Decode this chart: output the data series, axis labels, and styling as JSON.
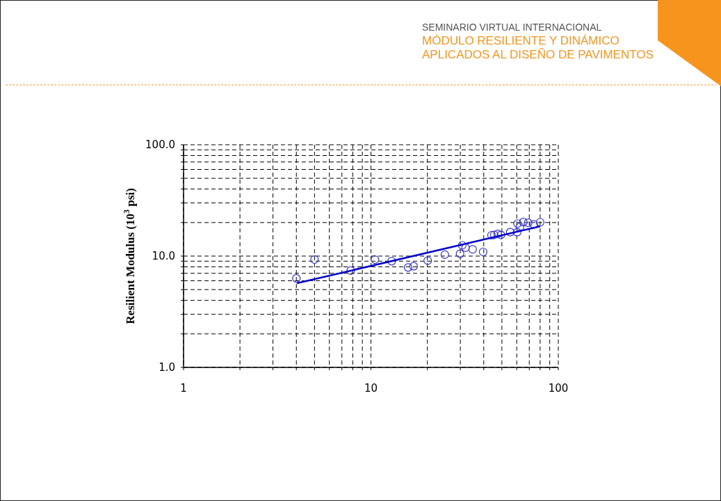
{
  "chart_data": {
    "type": "scatter",
    "title": "SEMINARIO VIRTUAL INTERNACIONAL",
    "subtitle": "MÓDULO RESILIENTE Y DINÁMICO APLICADOS AL DISEÑO DE PAVIMENTOS",
    "ylabel": "Resilient Modulus (10$^{3}$ psi)",
    "log": "xy",
    "grid": true,
    "marker": "circle",
    "xlim": [
      1,
      100
    ],
    "ylim": [
      1,
      100
    ],
    "xticks": [
      1,
      {
        "value": 2,
        "label": null
      },
      {
        "value": 3,
        "label": null
      },
      {
        "value": 4,
        "label": null
      },
      {
        "value": 5,
        "label": null
      },
      {
        "value": 6,
        "label": null
      },
      {
        "value": 7,
        "label": null
      },
      {
        "value": 8,
        "label": null
      },
      {
        "value": 9,
        "label": null
      },
      10,
      {
        "value": 20,
        "label": null
      },
      {
        "value": 30,
        "label": null
      },
      {
        "value": 40,
        "label": null
      },
      {
        "value": 50,
        "label": null
      },
      {
        "value": 60,
        "label": null
      },
      {
        "value": 70,
        "label": null
      },
      {
        "value": 80,
        "label": null
      },
      {
        "value": 90,
        "label": null
      },
      100
    ],
    "yticks": [
      {
        "value": 1,
        "label": "1.0"
      },
      {
        "value": 2,
        "label": null
      },
      {
        "value": 3,
        "label": null
      },
      {
        "value": 4,
        "label": null
      },
      {
        "value": 5,
        "label": null
      },
      {
        "value": 6,
        "label": null
      },
      {
        "value": 7,
        "label": null
      },
      {
        "value": 8,
        "label": null
      },
      {
        "value": 9,
        "label": null
      },
      {
        "value": 10,
        "label": "10.0"
      },
      {
        "value": 20,
        "label": null
      },
      {
        "value": 30,
        "label": null
      },
      {
        "value": 40,
        "label": null
      },
      {
        "value": 50,
        "label": null
      },
      {
        "value": 60,
        "label": null
      },
      {
        "value": 70,
        "label": null
      },
      {
        "value": 80,
        "label": null
      },
      {
        "value": 90,
        "label": null
      },
      {
        "value": 100,
        "label": "100.0"
      }
    ],
    "series": [
      {
        "color": "#3333cc",
        "x": [
          4.0,
          5.0,
          7.8,
          10.5,
          12.9,
          15.8,
          16.9,
          20.1,
          24.8,
          29.9,
          30.7,
          32,
          34.9,
          39.7,
          44,
          45.5,
          47.5,
          49.4,
          55.4,
          60.3,
          60.6,
          62.5,
          65,
          69,
          74,
          80
        ],
        "values": [
          6.3,
          9.3,
          7.4,
          9.3,
          9.0,
          7.9,
          8.1,
          9.1,
          10.3,
          10.5,
          12.5,
          11.9,
          11.5,
          10.9,
          15.4,
          15.5,
          15.8,
          15.5,
          16.4,
          16.4,
          19.6,
          18.3,
          20.2,
          19.9,
          19.3,
          20.1
        ]
      },
      {
        "type": "line",
        "color": "#0000cc",
        "marker": "none",
        "x": [
          4.03,
          80
        ],
        "values": [
          5.7,
          18.5
        ]
      }
    ]
  }
}
